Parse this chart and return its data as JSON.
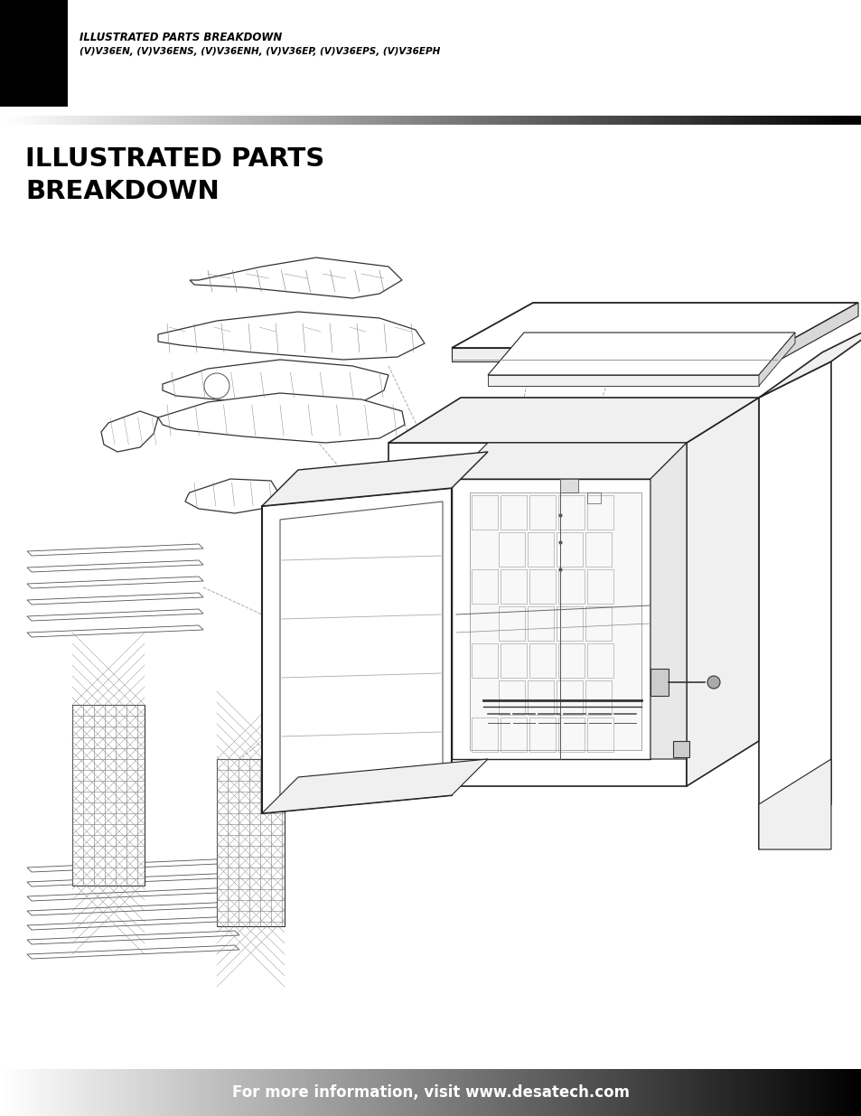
{
  "header_title_line1": "ILLUSTRATED PARTS BREAKDOWN",
  "header_title_line2": "(V)V36EN, (V)V36ENS, (V)V36ENH, (V)V36EP, (V)V36EPS, (V)V36EPH",
  "main_title_line1": "ILLUSTRATED PARTS",
  "main_title_line2": "BREAKDOWN",
  "footer_text": "For more information, visit www.desatech.com",
  "bg_color": "#ffffff",
  "line_color": "#222222",
  "light_fill": "#f0f0f0",
  "mid_fill": "#d8d8d8",
  "footer_text_color": "#ffffff"
}
